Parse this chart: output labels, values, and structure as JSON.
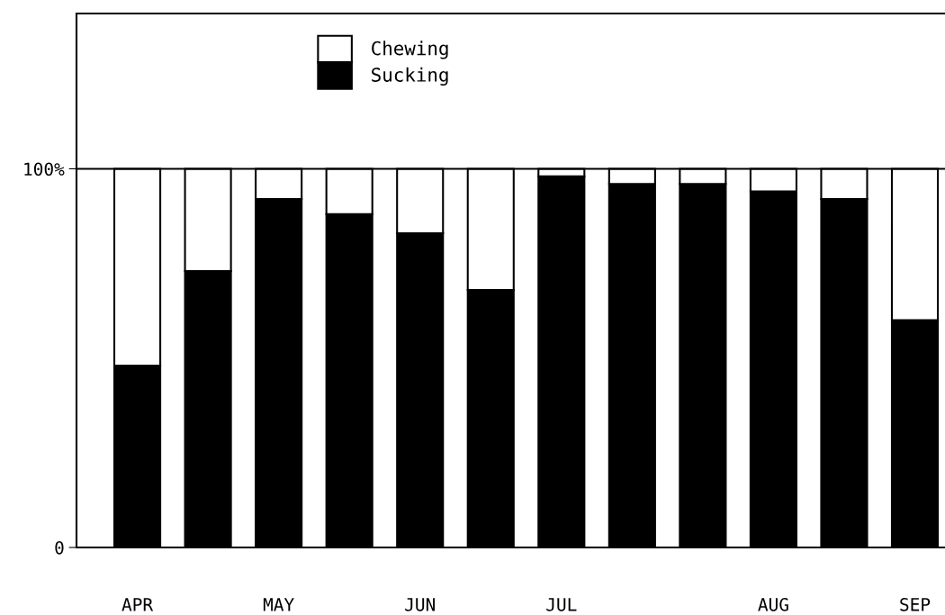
{
  "chart_data": {
    "type": "bar",
    "stacked": true,
    "categories": [
      "APR",
      null,
      "MAY",
      null,
      "JUN",
      null,
      "JUL",
      null,
      null,
      "AUG",
      null,
      "SEP"
    ],
    "series": [
      {
        "name": "Sucking",
        "color": "#000000",
        "values": [
          48,
          73,
          92,
          88,
          83,
          68,
          98,
          96,
          96,
          94,
          92,
          60
        ]
      },
      {
        "name": "Chewing",
        "color": "#ffffff",
        "values": [
          52,
          27,
          8,
          12,
          17,
          32,
          2,
          4,
          4,
          6,
          8,
          40
        ]
      }
    ],
    "ylim": [
      0,
      141
    ],
    "yticks": [
      0,
      {
        "value": 100,
        "label": "100%"
      }
    ],
    "ref_lines": [
      {
        "axis": "y",
        "value": 100,
        "color": "#000000"
      }
    ],
    "legend": "top",
    "grid": false
  }
}
